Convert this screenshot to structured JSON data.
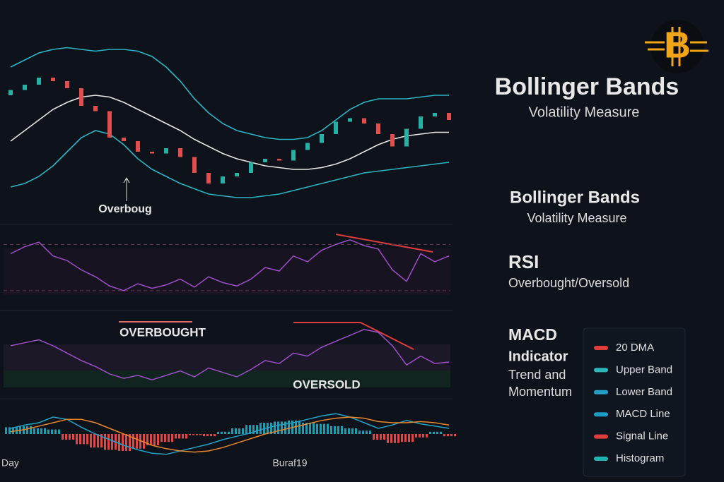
{
  "sidebar": {
    "logo_letter": "B",
    "title": "Bollinger Bands",
    "title_sub": "Volatility Measure",
    "section_1_title": "Bollinger Bands",
    "section_1_sub": "Volatility Measure",
    "section_2_title": "RSI",
    "section_2_sub": "Overbought/Oversold",
    "section_3_title_1": "MACD",
    "section_3_title_2": "Indicator",
    "section_3_sub_1": "Trend and",
    "section_3_sub_2": "Momentum",
    "legend": [
      {
        "name": "20 DMA",
        "color": "#e03c3c"
      },
      {
        "name": "Upper Band",
        "color": "#2ab8b8"
      },
      {
        "name": "Lower Band",
        "color": "#249fc6"
      },
      {
        "name": "MACD Line",
        "color": "#1f9cc4"
      },
      {
        "name": "Signal Line",
        "color": "#e03c3c"
      },
      {
        "name": "Histogram",
        "color": "#22b3b0"
      }
    ]
  },
  "chart_data": [
    {
      "type": "candlestick",
      "ylim": [
        0,
        100
      ],
      "up_color": "#27b0a6",
      "down_color": "#e0504f",
      "annotation": "Overboug",
      "open": [
        62,
        65,
        68,
        72,
        70,
        66,
        56,
        53,
        38,
        36,
        30,
        29,
        32,
        27,
        18,
        12,
        16,
        18,
        24,
        26,
        25,
        31,
        35,
        40,
        47,
        49,
        46,
        40,
        33,
        43,
        50,
        52
      ],
      "close": [
        65,
        68,
        72,
        70,
        66,
        56,
        53,
        38,
        36,
        30,
        29,
        32,
        27,
        18,
        12,
        16,
        18,
        24,
        26,
        25,
        31,
        35,
        40,
        47,
        49,
        46,
        40,
        33,
        43,
        50,
        52,
        48
      ],
      "series": [
        {
          "name": "Upper Band",
          "color": "#2ab5c5",
          "values": [
            78,
            82,
            86,
            88,
            89,
            88,
            87,
            88,
            88,
            87,
            84,
            78,
            70,
            60,
            52,
            46,
            42,
            40,
            38,
            37,
            37,
            38,
            42,
            48,
            54,
            58,
            60,
            60,
            60,
            61,
            62,
            62
          ]
        },
        {
          "name": "20 DMA",
          "color": "#e6e6e6",
          "values": [
            36,
            42,
            48,
            54,
            58,
            61,
            62,
            61,
            58,
            54,
            50,
            46,
            42,
            37,
            33,
            29,
            26,
            24,
            22,
            21,
            20,
            20,
            21,
            23,
            26,
            30,
            34,
            37,
            39,
            40,
            41,
            41
          ]
        },
        {
          "name": "Lower Band",
          "color": "#2ab5c5",
          "values": [
            10,
            12,
            16,
            22,
            30,
            38,
            42,
            40,
            34,
            26,
            20,
            16,
            12,
            9,
            6,
            5,
            4,
            4,
            5,
            6,
            8,
            10,
            12,
            14,
            16,
            18,
            19,
            20,
            21,
            22,
            23,
            24
          ]
        }
      ]
    },
    {
      "type": "line",
      "ylim": [
        25,
        80
      ],
      "levels": [
        70,
        30
      ],
      "color": "#9b4fc9",
      "values": [
        62,
        68,
        72,
        60,
        56,
        48,
        42,
        34,
        30,
        36,
        32,
        35,
        40,
        33,
        42,
        37,
        34,
        40,
        50,
        47,
        60,
        55,
        65,
        70,
        74,
        69,
        66,
        48,
        38,
        62,
        55,
        60
      ]
    },
    {
      "type": "line",
      "ylim": [
        0,
        100
      ],
      "color": "#9b4fc9",
      "annotation_top": "OVERBOUGHT",
      "annotation_bottom": "OVERSOLD",
      "values": [
        62,
        66,
        70,
        62,
        52,
        42,
        34,
        24,
        18,
        22,
        16,
        22,
        28,
        20,
        32,
        26,
        20,
        30,
        42,
        38,
        52,
        48,
        60,
        68,
        76,
        84,
        80,
        62,
        36,
        48,
        38,
        40
      ]
    },
    {
      "type": "macd",
      "ylim": [
        -50,
        50
      ],
      "x_label_left": "Day",
      "x_label_mid": "Buraf19",
      "pos_color": "#1f9cb0",
      "neg_color": "#e04646",
      "histogram": [
        12,
        14,
        10,
        8,
        -10,
        -18,
        -24,
        -28,
        -30,
        -26,
        -20,
        -14,
        -8,
        -2,
        -4,
        4,
        10,
        16,
        20,
        22,
        24,
        20,
        18,
        14,
        10,
        6,
        -10,
        -16,
        -14,
        -6,
        4,
        -4
      ],
      "series": [
        {
          "name": "MACD Line",
          "color": "#1fa3c7",
          "values": [
            10,
            16,
            20,
            30,
            26,
            12,
            0,
            -10,
            -20,
            -28,
            -34,
            -36,
            -30,
            -24,
            -18,
            -10,
            -4,
            2,
            10,
            16,
            20,
            26,
            32,
            36,
            30,
            20,
            10,
            16,
            24,
            18,
            14,
            10
          ]
        },
        {
          "name": "Signal Line",
          "color": "#e8862a",
          "values": [
            4,
            8,
            14,
            20,
            26,
            26,
            20,
            10,
            0,
            -10,
            -20,
            -26,
            -30,
            -32,
            -30,
            -24,
            -16,
            -8,
            0,
            6,
            12,
            18,
            24,
            28,
            30,
            28,
            22,
            20,
            20,
            22,
            20,
            16
          ]
        }
      ]
    }
  ]
}
